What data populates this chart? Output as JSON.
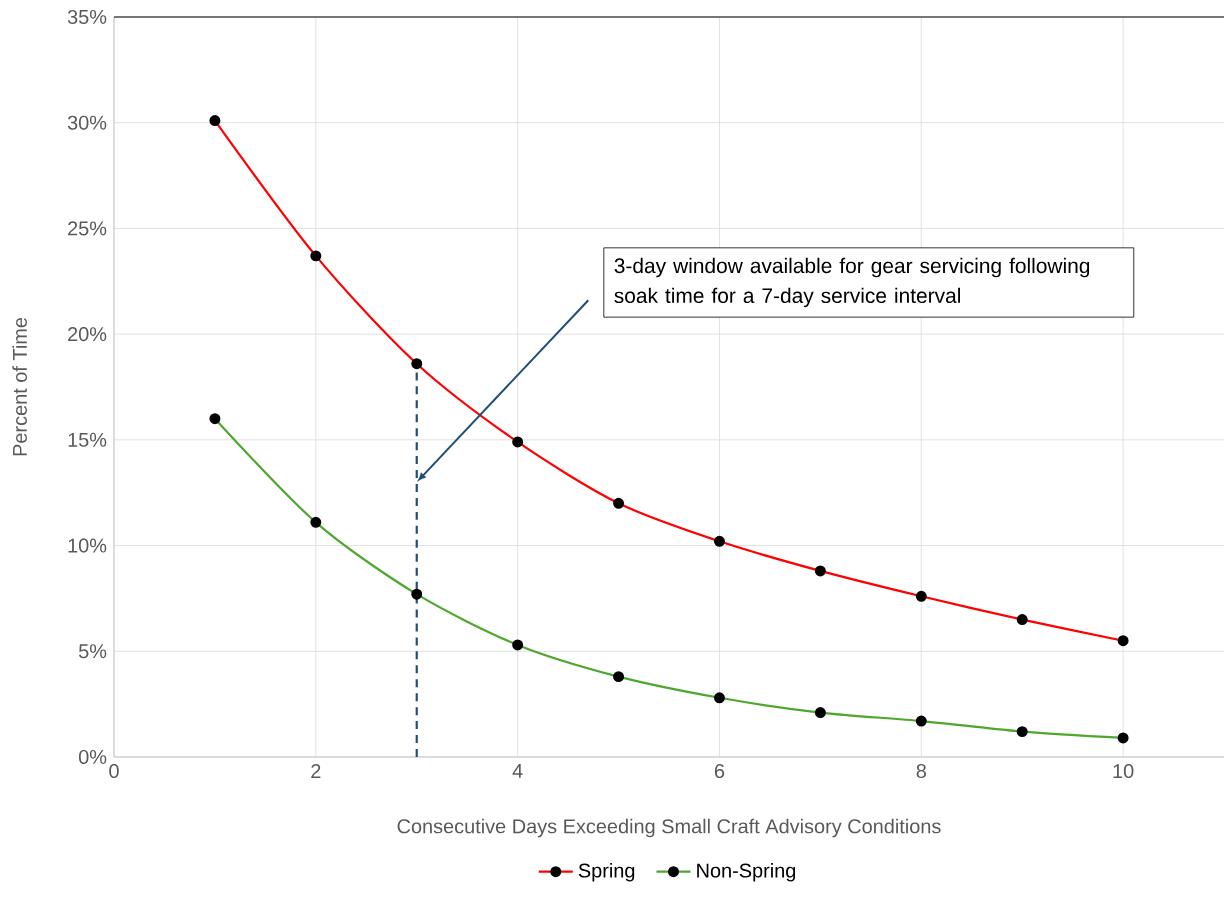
{
  "chart_data": {
    "type": "line",
    "xlabel": "Consecutive Days Exceeding Small Craft Advisory Conditions",
    "ylabel": "Percent of Time",
    "x": [
      1,
      2,
      3,
      4,
      5,
      6,
      7,
      8,
      9,
      10
    ],
    "series": [
      {
        "name": "Spring",
        "color": "#ff0000",
        "values": [
          30.1,
          23.7,
          18.6,
          14.9,
          12.0,
          10.2,
          8.8,
          7.6,
          6.5,
          5.5
        ]
      },
      {
        "name": "Non-Spring",
        "color": "#4ea72e",
        "values": [
          16.0,
          11.1,
          7.7,
          5.3,
          3.8,
          2.8,
          2.1,
          1.7,
          1.2,
          0.9
        ]
      },
      {
        "type": "line",
        "x": [
          3,
          3
        ],
        "values": [
          0,
          18.6
        ],
        "color": "#1f4e79",
        "line_style": "dashed",
        "marker": "none"
      }
    ],
    "xlim": [
      0,
      11
    ],
    "xticks": [
      0,
      2,
      4,
      6,
      8,
      10
    ],
    "ylim": [
      0,
      35
    ],
    "yticks": [
      {
        "value": 0,
        "label": "0%"
      },
      {
        "value": 5,
        "label": "5%"
      },
      {
        "value": 10,
        "label": "10%"
      },
      {
        "value": 15,
        "label": "15%"
      },
      {
        "value": 20,
        "label": "20%"
      },
      {
        "value": 25,
        "label": "25%"
      },
      {
        "value": 30,
        "label": "30%"
      },
      {
        "value": 35,
        "label": "35%"
      }
    ],
    "annotations": [
      {
        "text": "3-day window available for gear servicing following soak time for a 7-day service interval",
        "x": 3,
        "y": 13
      }
    ],
    "grid": true,
    "legend": "bottom",
    "marker": "circle",
    "line_style": "solid"
  }
}
